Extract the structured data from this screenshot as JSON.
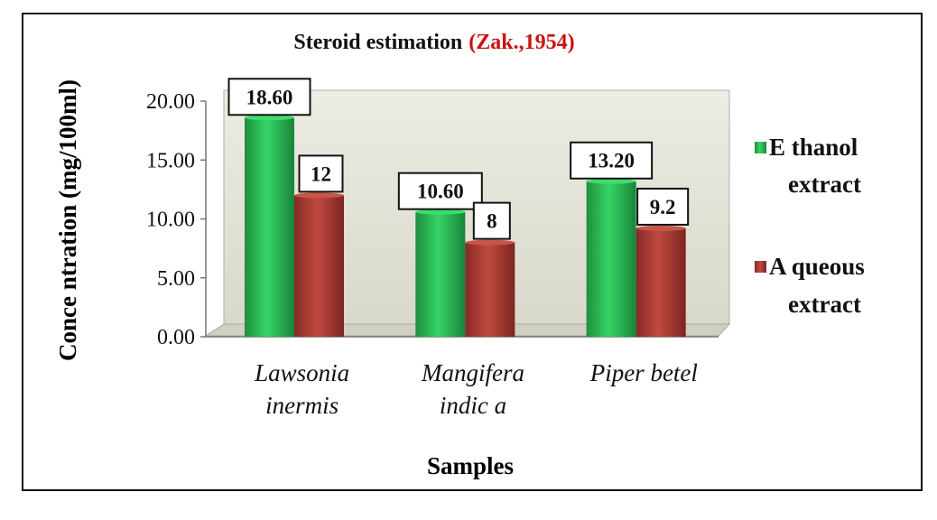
{
  "chart_data": {
    "type": "bar",
    "title": "Steroid estimation",
    "title_citation": "(Zak.,1954)",
    "xlabel": "Samples",
    "ylabel": "Conce ntration (mg/100ml)",
    "categories": [
      "Lawsonia inermis",
      "Mangifera indica",
      "Piper betel"
    ],
    "category_label_lines": [
      [
        "Lawsonia",
        "inermis"
      ],
      [
        "Mangifera",
        "indic a"
      ],
      [
        "Piper betel"
      ]
    ],
    "y_ticks": [
      "0.00",
      "5.00",
      "10.00",
      "15.00",
      "20.00"
    ],
    "ylim": [
      0,
      20
    ],
    "series": [
      {
        "name": "Ethanol extract",
        "legend_lines": [
          "E thanol",
          "extract"
        ],
        "values": [
          18.6,
          10.6,
          13.2
        ],
        "labels": [
          "18.60",
          "10.60",
          "13.20"
        ]
      },
      {
        "name": "Aqueous extract",
        "legend_lines": [
          "A queous",
          "extract"
        ],
        "values": [
          12,
          8,
          9.2
        ],
        "labels": [
          "12",
          "8",
          "9.2"
        ]
      }
    ],
    "legend_position": "right",
    "grid": false,
    "colors": {
      "ethanol": "#21b24a",
      "aqueous": "#a63a32",
      "plot_bg": "#dfdfd3",
      "citation": "#cc1111"
    }
  }
}
